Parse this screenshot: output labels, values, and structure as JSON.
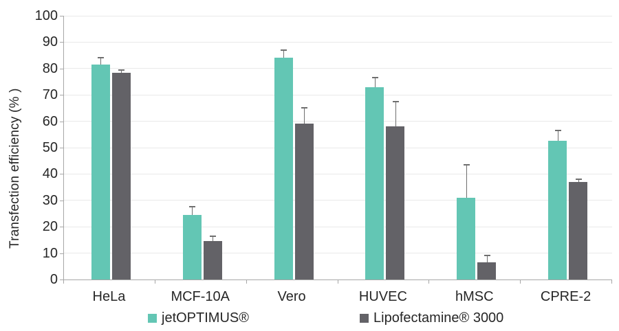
{
  "chart_data": {
    "type": "bar",
    "title": "",
    "ylabel": "Transfection efficiency (% )",
    "xlabel": "",
    "ylim": [
      0,
      100
    ],
    "yticks": [
      0,
      10,
      20,
      30,
      40,
      50,
      60,
      70,
      80,
      90,
      100
    ],
    "grid": true,
    "legend_position": "bottom",
    "error_bars": "plus-direction only, with caps",
    "categories": [
      "HeLa",
      "MCF-10A",
      "Vero",
      "HUVEC",
      "hMSC",
      "CPRE-2"
    ],
    "series": [
      {
        "name": "jetOPTIMUS®",
        "color": "#63C6B4",
        "values": [
          81.5,
          24.5,
          84,
          73,
          31,
          52.5
        ],
        "errors_plus": [
          2.5,
          3,
          3,
          3.5,
          12.5,
          4
        ]
      },
      {
        "name": "Lipofectamine® 3000",
        "color": "#636267",
        "values": [
          78.5,
          14.5,
          59,
          58,
          6.5,
          37
        ],
        "errors_plus": [
          1,
          2,
          6,
          9.5,
          2.5,
          1
        ]
      }
    ],
    "styles": {
      "gridline_color": "#E9E9E9",
      "axis_color": "#A6A6A6",
      "errorbar_color": "#6E6E6E",
      "text_color": "#262626",
      "background_color": "#FFFFFF"
    }
  }
}
